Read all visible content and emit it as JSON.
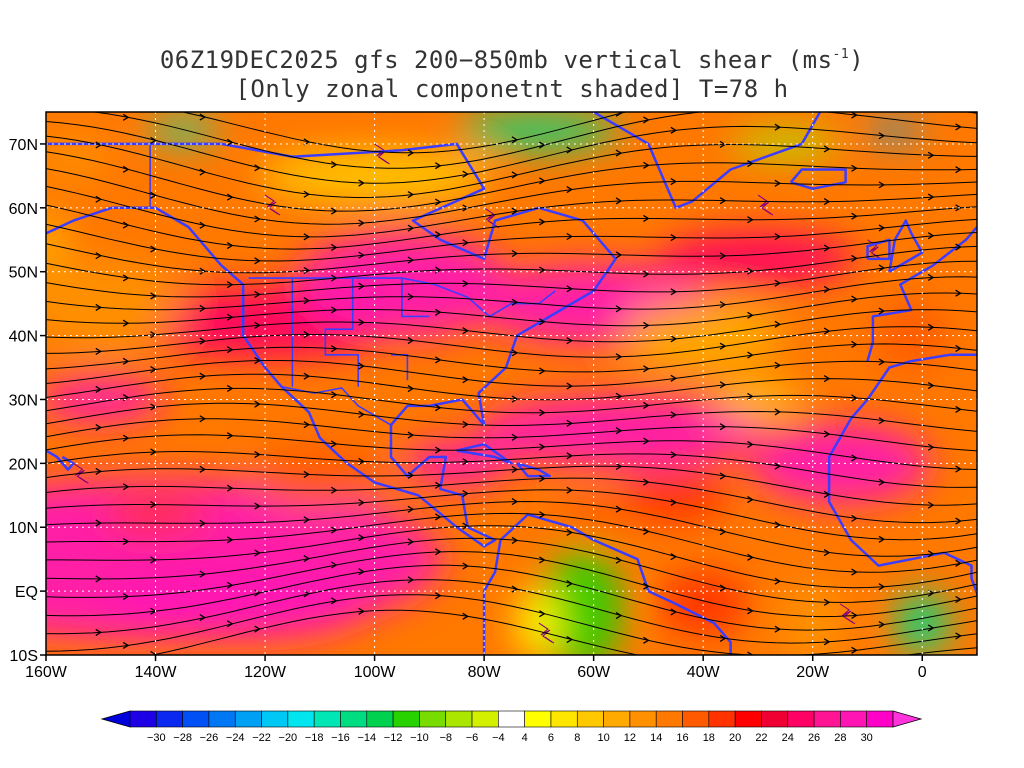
{
  "title": {
    "line1_pre": "06Z19DEC2025 gfs 200−850mb vertical shear (ms",
    "line1_sup": "-1",
    "line1_post": ")",
    "line2": "[Only zonal componetnt shaded] T=78 h"
  },
  "axes": {
    "lat_labels": [
      "70N",
      "60N",
      "50N",
      "40N",
      "30N",
      "20N",
      "10N",
      "EQ",
      "10S"
    ],
    "lat_values": [
      70,
      60,
      50,
      40,
      30,
      20,
      10,
      0,
      -10
    ],
    "lon_labels": [
      "160W",
      "140W",
      "120W",
      "100W",
      "80W",
      "60W",
      "40W",
      "20W",
      "0"
    ],
    "lon_values": [
      -160,
      -140,
      -120,
      -100,
      -80,
      -60,
      -40,
      -20,
      0
    ],
    "lon_range": [
      -160,
      10
    ],
    "lat_range": [
      -10,
      75
    ],
    "grid": "dotted"
  },
  "colorbar": {
    "labels": [
      "-30",
      "-28",
      "-26",
      "-24",
      "-22",
      "-20",
      "-18",
      "-16",
      "-14",
      "-12",
      "-10",
      "-8",
      "-6",
      "-4",
      "4",
      "6",
      "8",
      "10",
      "12",
      "14",
      "16",
      "18",
      "20",
      "22",
      "24",
      "26",
      "28",
      "30"
    ],
    "colors": [
      "#1e00e6",
      "#0a28f0",
      "#0050f5",
      "#0078f5",
      "#00a0f5",
      "#00c8f5",
      "#00e6f0",
      "#00e6b4",
      "#00dc82",
      "#00d250",
      "#28d200",
      "#78dc00",
      "#aae600",
      "#d2f000",
      "#ffffff",
      "#ffff00",
      "#ffe600",
      "#ffc800",
      "#ffaa00",
      "#ff9100",
      "#ff7800",
      "#ff5a00",
      "#ff3200",
      "#ff0000",
      "#f00032",
      "#ff0064",
      "#ff1493",
      "#ff14b4",
      "#ff00c8"
    ],
    "arrow_left": "#0000dc",
    "arrow_right": "#ff32dc"
  },
  "colors": {
    "coast": "#3c3cff",
    "contour": "#800080",
    "streamline": "#000000"
  }
}
